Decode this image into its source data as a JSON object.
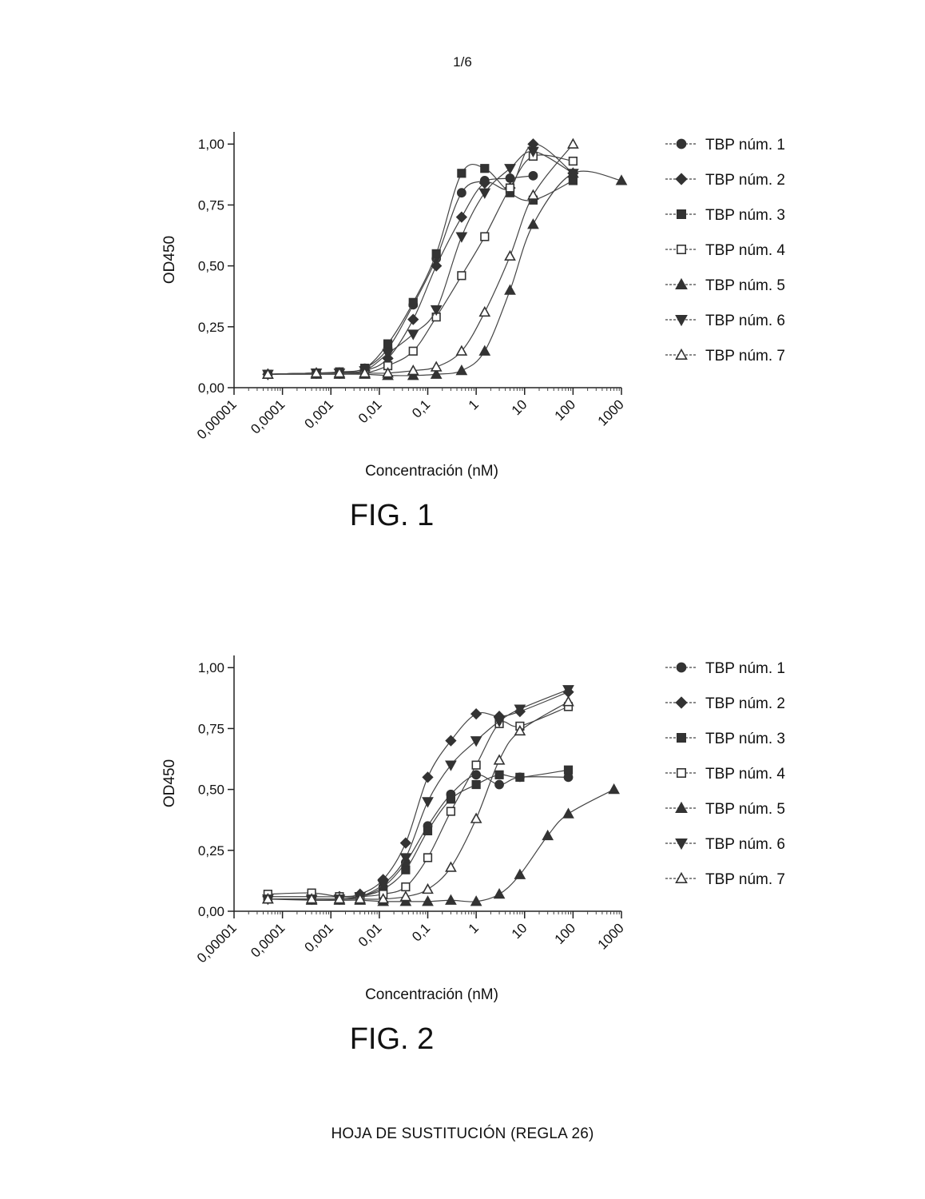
{
  "page": {
    "page_number": "1/6",
    "footer": "HOJA DE SUSTITUCIÓN (REGLA 26)"
  },
  "series_styles": [
    {
      "name": "TBP núm. 1",
      "marker": "circle",
      "filled": true
    },
    {
      "name": "TBP núm. 2",
      "marker": "diamond",
      "filled": true
    },
    {
      "name": "TBP núm. 3",
      "marker": "square",
      "filled": true
    },
    {
      "name": "TBP núm. 4",
      "marker": "square",
      "filled": false
    },
    {
      "name": "TBP núm. 5",
      "marker": "triangle-up",
      "filled": true
    },
    {
      "name": "TBP núm. 6",
      "marker": "triangle-down",
      "filled": true
    },
    {
      "name": "TBP núm. 7",
      "marker": "triangle-up",
      "filled": false
    }
  ],
  "chart_data": [
    {
      "type": "scatter",
      "figure_label": "FIG. 1",
      "xlabel": "Concentración (nM)",
      "ylabel": "OD450",
      "x_scale": "log",
      "xlim": [
        1e-05,
        1000
      ],
      "ylim": [
        0,
        1.05
      ],
      "x_tick_labels": [
        "0,00001",
        "0,0001",
        "0,001",
        "0,01",
        "0,1",
        "1",
        "10",
        "100",
        "1000"
      ],
      "y_tick_labels": [
        "0,00",
        "0,25",
        "0,50",
        "0,75",
        "1,00"
      ],
      "y_tick_values": [
        0,
        0.25,
        0.5,
        0.75,
        1.0
      ],
      "legend_position": "right",
      "grid": false,
      "x": [
        5e-05,
        0.0005,
        0.0015,
        0.005,
        0.015,
        0.05,
        0.15,
        0.5,
        1.5,
        5,
        15,
        100,
        1000
      ],
      "series": [
        {
          "name": "TBP núm. 1",
          "values": [
            0.055,
            0.06,
            0.06,
            0.08,
            0.16,
            0.34,
            0.53,
            0.8,
            0.85,
            0.86,
            0.87,
            null,
            null
          ]
        },
        {
          "name": "TBP núm. 2",
          "values": [
            0.055,
            0.06,
            0.06,
            0.07,
            0.12,
            0.28,
            0.5,
            0.7,
            0.84,
            0.82,
            1.0,
            0.88,
            null
          ]
        },
        {
          "name": "TBP núm. 3",
          "values": [
            0.055,
            0.06,
            0.065,
            0.08,
            0.18,
            0.35,
            0.55,
            0.88,
            0.9,
            0.8,
            0.77,
            0.85,
            null
          ]
        },
        {
          "name": "TBP núm. 4",
          "values": [
            0.055,
            0.06,
            0.06,
            0.06,
            0.09,
            0.15,
            0.29,
            0.46,
            0.62,
            0.82,
            0.95,
            0.93,
            null
          ]
        },
        {
          "name": "TBP núm. 5",
          "values": [
            0.055,
            0.055,
            0.055,
            0.055,
            0.05,
            0.05,
            0.055,
            0.07,
            0.15,
            0.4,
            0.67,
            0.88,
            0.85
          ]
        },
        {
          "name": "TBP núm. 6",
          "values": [
            0.055,
            0.06,
            0.06,
            0.07,
            0.14,
            0.22,
            0.32,
            0.62,
            0.8,
            0.9,
            0.97,
            0.88,
            null
          ]
        },
        {
          "name": "TBP núm. 7",
          "values": [
            0.055,
            0.06,
            0.06,
            0.06,
            0.06,
            0.07,
            0.085,
            0.15,
            0.31,
            0.54,
            0.79,
            1.0,
            null
          ]
        }
      ]
    },
    {
      "type": "scatter",
      "figure_label": "FIG. 2",
      "xlabel": "Concentración (nM)",
      "ylabel": "OD450",
      "x_scale": "log",
      "xlim": [
        1e-05,
        1000
      ],
      "ylim": [
        0,
        1.05
      ],
      "x_tick_labels": [
        "0,00001",
        "0,0001",
        "0,001",
        "0,01",
        "0,1",
        "1",
        "10",
        "100",
        "1000"
      ],
      "y_tick_labels": [
        "0,00",
        "0,25",
        "0,50",
        "0,75",
        "1,00"
      ],
      "y_tick_values": [
        0,
        0.25,
        0.5,
        0.75,
        1.0
      ],
      "legend_position": "right",
      "grid": false,
      "x": [
        5e-05,
        0.0004,
        0.0015,
        0.004,
        0.012,
        0.035,
        0.1,
        0.3,
        1,
        3,
        8,
        30,
        80,
        700
      ],
      "series": [
        {
          "name": "TBP núm. 1",
          "values": [
            0.05,
            0.05,
            0.05,
            0.06,
            0.1,
            0.2,
            0.35,
            0.48,
            0.56,
            0.52,
            0.55,
            null,
            0.55,
            null
          ]
        },
        {
          "name": "TBP núm. 2",
          "values": [
            0.06,
            0.06,
            0.06,
            0.07,
            0.13,
            0.28,
            0.55,
            0.7,
            0.81,
            0.8,
            0.82,
            null,
            0.9,
            null
          ]
        },
        {
          "name": "TBP núm. 3",
          "values": [
            0.05,
            0.05,
            0.05,
            0.06,
            0.09,
            0.17,
            0.33,
            0.46,
            0.52,
            0.56,
            0.55,
            null,
            0.58,
            null
          ]
        },
        {
          "name": "TBP núm. 4",
          "values": [
            0.07,
            0.075,
            0.06,
            0.06,
            0.07,
            0.1,
            0.22,
            0.41,
            0.6,
            0.77,
            0.76,
            null,
            0.84,
            null
          ]
        },
        {
          "name": "TBP núm. 5",
          "values": [
            0.05,
            0.045,
            0.045,
            0.045,
            0.04,
            0.04,
            0.04,
            0.045,
            0.04,
            0.07,
            0.15,
            0.31,
            0.4,
            0.5
          ]
        },
        {
          "name": "TBP núm. 6",
          "values": [
            0.05,
            0.05,
            0.05,
            0.06,
            0.11,
            0.22,
            0.45,
            0.6,
            0.7,
            0.78,
            0.83,
            null,
            0.91,
            null
          ]
        },
        {
          "name": "TBP núm. 7",
          "values": [
            0.05,
            0.05,
            0.05,
            0.05,
            0.05,
            0.06,
            0.09,
            0.18,
            0.38,
            0.62,
            0.74,
            null,
            0.86,
            null
          ]
        }
      ]
    }
  ]
}
